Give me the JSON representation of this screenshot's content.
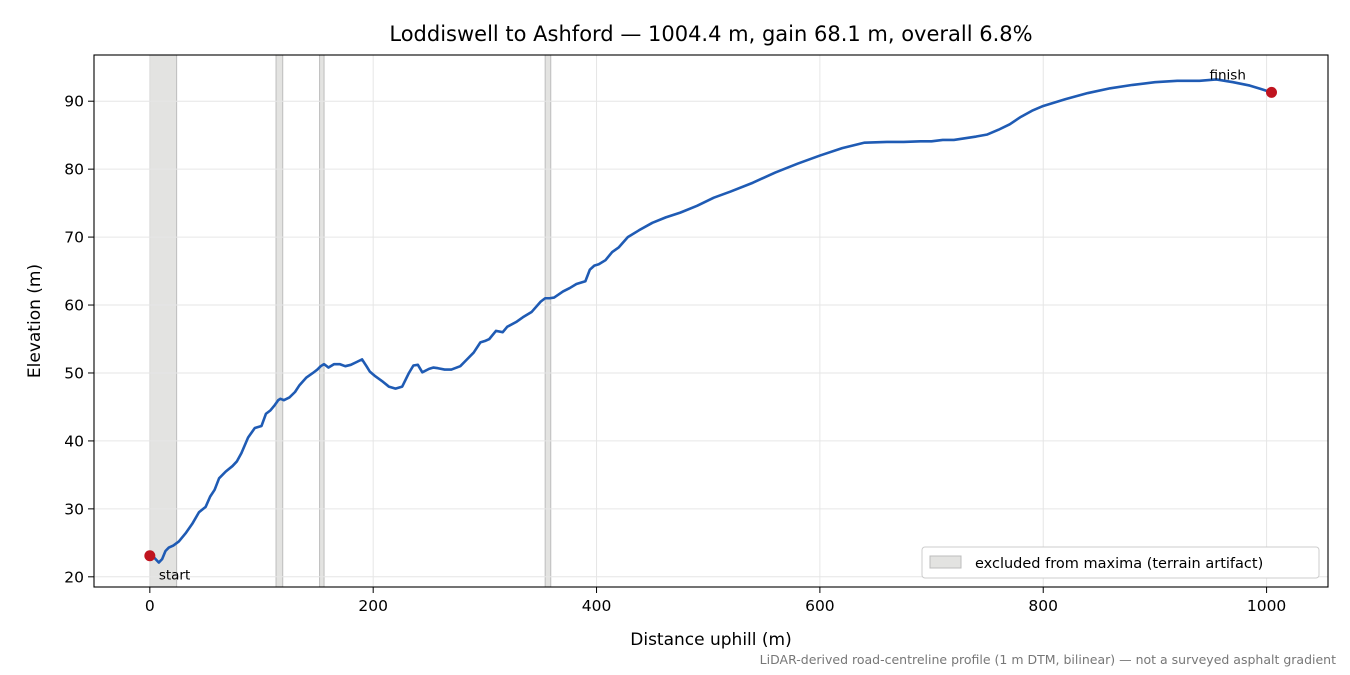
{
  "chart_data": {
    "type": "line",
    "title": "Loddiswell to Ashford — 1004.4 m, gain 68.1 m, overall 6.8%",
    "xlabel": "Distance uphill (m)",
    "ylabel": "Elevation (m)",
    "xlim": [
      -50,
      1055
    ],
    "ylim": [
      18.5,
      96.8
    ],
    "xticks": [
      0,
      200,
      400,
      600,
      800,
      1000
    ],
    "yticks": [
      20,
      30,
      40,
      50,
      60,
      70,
      80,
      90
    ],
    "grid": true,
    "legend_position": "lower right",
    "legend_label": "excluded from maxima (terrain artifact)",
    "footnote": "LiDAR-derived road-centreline profile (1 m DTM, bilinear) — not a surveyed asphalt gradient",
    "colors": {
      "line": "#1f5bb4",
      "marker": "#c0141f",
      "band_fill": "#e3e3e1",
      "band_edge": "#bdbdbd",
      "grid": "#e6e6e6"
    },
    "excluded_ranges": [
      [
        0,
        24
      ],
      [
        113,
        119
      ],
      [
        152,
        156
      ],
      [
        354,
        359
      ]
    ],
    "annotations": [
      {
        "text": "start",
        "x": 0,
        "y": 23.1
      },
      {
        "text": "finish",
        "x": 1004.4,
        "y": 91.3
      }
    ],
    "series": [
      {
        "x": [
          0,
          4,
          8,
          11,
          14,
          17,
          21,
          26,
          32,
          38,
          44,
          50,
          54,
          58,
          62,
          68,
          74,
          78,
          82,
          88,
          94,
          100,
          104,
          108,
          112,
          115,
          117,
          120,
          125,
          130,
          134,
          140,
          146,
          150,
          153,
          156,
          160,
          165,
          170,
          175,
          180,
          185,
          190,
          194,
          197,
          202,
          208,
          214,
          220,
          226,
          232,
          236,
          240,
          244,
          250,
          254,
          258,
          264,
          270,
          278,
          284,
          290,
          296,
          300,
          304,
          310,
          316,
          320,
          328,
          334,
          342,
          350,
          354,
          358,
          362,
          370,
          376,
          382,
          390,
          394,
          398,
          402,
          408,
          414,
          420,
          428,
          438,
          450,
          462,
          475,
          490,
          505,
          520,
          540,
          560,
          580,
          600,
          620,
          640,
          660,
          675,
          690,
          700,
          710,
          720,
          740,
          750,
          760,
          770,
          780,
          790,
          800,
          820,
          840,
          860,
          880,
          900,
          920,
          940,
          955,
          970,
          985,
          995,
          1004.4
        ],
        "y": [
          23.1,
          22.8,
          22.1,
          22.6,
          23.8,
          24.3,
          24.6,
          25.2,
          26.4,
          27.8,
          29.5,
          30.3,
          31.8,
          32.8,
          34.5,
          35.5,
          36.3,
          37.0,
          38.2,
          40.5,
          41.9,
          42.2,
          44.0,
          44.5,
          45.3,
          46.0,
          46.2,
          46.0,
          46.4,
          47.2,
          48.2,
          49.3,
          50.0,
          50.5,
          51.0,
          51.3,
          50.8,
          51.3,
          51.3,
          51.0,
          51.2,
          51.6,
          52.0,
          51.0,
          50.2,
          49.5,
          48.8,
          48.0,
          47.7,
          48.0,
          50.0,
          51.1,
          51.2,
          50.1,
          50.6,
          50.8,
          50.7,
          50.5,
          50.5,
          51.0,
          52.0,
          53.0,
          54.5,
          54.7,
          55.0,
          56.2,
          56.0,
          56.8,
          57.5,
          58.2,
          59.0,
          60.5,
          61.0,
          61.0,
          61.1,
          62.0,
          62.5,
          63.1,
          63.5,
          65.2,
          65.8,
          66.0,
          66.6,
          67.8,
          68.5,
          70.0,
          71.0,
          72.1,
          72.9,
          73.6,
          74.6,
          75.8,
          76.7,
          78.0,
          79.5,
          80.8,
          82.0,
          83.1,
          83.9,
          84.0,
          84.0,
          84.1,
          84.1,
          84.3,
          84.3,
          84.8,
          85.1,
          85.8,
          86.6,
          87.7,
          88.6,
          89.3,
          90.3,
          91.2,
          91.9,
          92.4,
          92.8,
          93.0,
          93.0,
          93.2,
          92.8,
          92.3,
          91.8,
          91.3
        ]
      }
    ]
  }
}
